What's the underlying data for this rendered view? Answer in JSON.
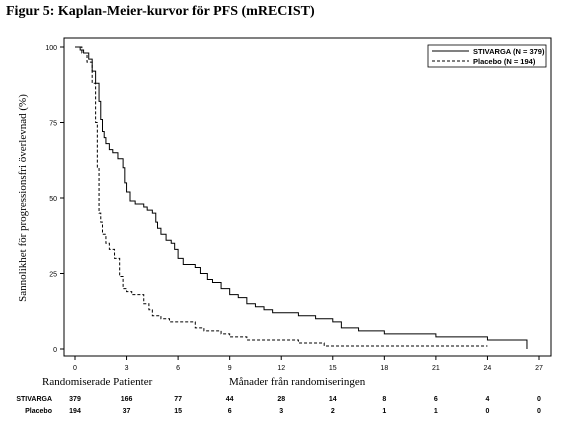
{
  "figure_title": "Figur 5: Kaplan-Meier-kurvor för PFS (mRECIST)",
  "chart_data": {
    "type": "line",
    "title": "Figur 5: Kaplan-Meier-kurvor för PFS (mRECIST)",
    "xlabel": "Månader från randomiseringen",
    "ylabel": "Sannolikhet för progressionsfri överlevnad (%)",
    "xlim": [
      0,
      27
    ],
    "ylim": [
      0,
      100
    ],
    "x_ticks": [
      0,
      3,
      6,
      9,
      12,
      15,
      18,
      21,
      24,
      27
    ],
    "y_ticks": [
      0,
      25,
      50,
      75,
      100
    ],
    "legend_position": "top-right",
    "grid": false,
    "series": [
      {
        "name": "STIVARGA (N = 379)",
        "style": "solid",
        "color": "#000000",
        "x": [
          0,
          0.3,
          0.5,
          0.8,
          1.0,
          1.2,
          1.4,
          1.5,
          1.6,
          1.7,
          1.8,
          2.0,
          2.2,
          2.5,
          2.8,
          2.9,
          3.0,
          3.2,
          3.5,
          4.0,
          4.2,
          4.5,
          4.7,
          4.8,
          5.0,
          5.3,
          5.6,
          5.8,
          6.0,
          6.3,
          7.0,
          7.3,
          7.7,
          8.0,
          8.5,
          9.0,
          9.5,
          10.0,
          10.5,
          11.0,
          11.5,
          12.0,
          13.0,
          14.0,
          15.0,
          15.5,
          16.5,
          18.0,
          21.0,
          23.0,
          24.0,
          26.0,
          26.3
        ],
        "y": [
          100,
          99,
          98,
          96,
          92,
          88,
          82,
          76,
          72,
          70,
          68,
          66,
          65,
          63,
          60,
          55,
          52,
          49,
          48,
          47,
          46,
          45,
          42,
          40,
          38,
          36,
          35,
          33,
          30,
          28,
          27,
          25,
          23,
          22,
          20,
          18,
          17,
          15,
          14,
          13,
          12,
          12,
          11,
          10,
          9,
          7,
          6,
          5,
          4,
          4,
          3,
          3,
          0
        ]
      },
      {
        "name": "Placebo (N = 194)",
        "style": "dashed",
        "color": "#000000",
        "x": [
          0,
          0.4,
          0.7,
          1.0,
          1.2,
          1.3,
          1.4,
          1.5,
          1.6,
          1.8,
          2.0,
          2.3,
          2.6,
          2.8,
          3.0,
          3.3,
          4.0,
          4.3,
          4.5,
          5.0,
          5.5,
          6.0,
          7.0,
          7.5,
          8.5,
          9.0,
          10.0,
          11.0,
          13.0,
          14.5,
          16.0,
          24.0
        ],
        "y": [
          100,
          98,
          95,
          88,
          75,
          60,
          45,
          42,
          38,
          35,
          33,
          30,
          24,
          20,
          19,
          18,
          15,
          13,
          11,
          10,
          9,
          9,
          7,
          6,
          5,
          4,
          3,
          3,
          2,
          1,
          1,
          1
        ]
      }
    ]
  },
  "risk_table": {
    "header_left": "Randomiserade Patienter",
    "times": [
      0,
      3,
      6,
      9,
      12,
      15,
      18,
      21,
      24,
      27
    ],
    "rows": [
      {
        "label": "STIVARGA",
        "values": [
          "379",
          "166",
          "77",
          "44",
          "28",
          "14",
          "8",
          "6",
          "4",
          "0"
        ]
      },
      {
        "label": "Placebo",
        "values": [
          "194",
          "37",
          "15",
          "6",
          "3",
          "2",
          "1",
          "1",
          "0",
          "0"
        ]
      }
    ]
  }
}
